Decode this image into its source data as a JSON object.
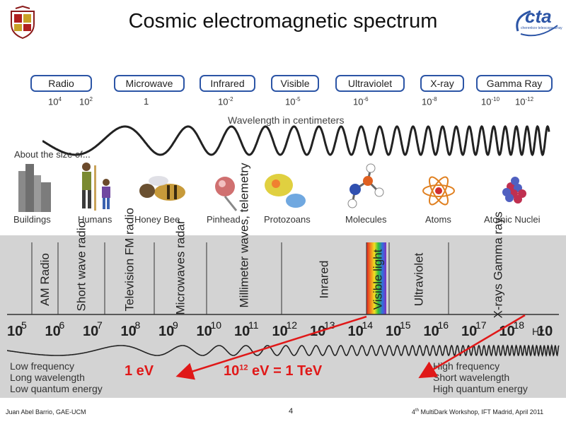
{
  "title": "Cosmic electromagnetic spectrum",
  "logo_text": "cta",
  "logo_subtext": "cherenkov telescope array",
  "bands_top": [
    {
      "label": "Radio",
      "exps": [
        "4",
        "2"
      ]
    },
    {
      "label": "Microwave",
      "exps": [
        ""
      ]
    },
    {
      "label": "Infrared",
      "exps": [
        "-2"
      ]
    },
    {
      "label": "Visible",
      "exps": [
        "-5"
      ]
    },
    {
      "label": "Ultraviolet",
      "exps": [
        "-6"
      ]
    },
    {
      "label": "X-ray",
      "exps": [
        "-8"
      ]
    },
    {
      "label": "Gamma Ray",
      "exps": [
        "-10",
        "-12"
      ]
    }
  ],
  "microwave_value": "1",
  "wavelength_label": "Wavelength in centimeters",
  "about_label": "About the size of...",
  "objects": [
    "Buildings",
    "Humans",
    "Honey Bee",
    "Pinhead",
    "Protozoans",
    "Molecules",
    "Atoms",
    "Atomic Nuclei"
  ],
  "bands_bottom": [
    "AM Radio",
    "Short wave radio",
    "Television FM radio",
    "Microwaves radar",
    "Millimeter waves, telemetry",
    "Inrared",
    "Visible light",
    "Ultraviolet",
    "X-rays Gamma rays"
  ],
  "freq_exponents": [
    "5",
    "6",
    "7",
    "8",
    "9",
    "10",
    "11",
    "12",
    "13",
    "14",
    "15",
    "16",
    "17",
    "18"
  ],
  "freq_base": "10",
  "freq_unit": "Hz",
  "low_lines": [
    "Low frequency",
    "Long wavelength",
    "Low quantum energy"
  ],
  "high_lines": [
    "High frequency",
    "Short wavelength",
    "High quantum energy"
  ],
  "energy_1ev": "1 eV",
  "energy_tev_base": "10",
  "energy_tev_exp": "12",
  "energy_tev_rest": " eV = 1 TeV",
  "footer_left": "Juan Abel Barrio, GAE-UCM",
  "page_number": "4",
  "footer_right_num": "4",
  "footer_right_sup": "th",
  "footer_right_rest": " MultiDark Workshop, IFT Madrid, April 2011",
  "colors": {
    "accent_blue": "#2c55a6",
    "arrow_red": "#e01818",
    "panel_gray": "#d3d3d3"
  }
}
